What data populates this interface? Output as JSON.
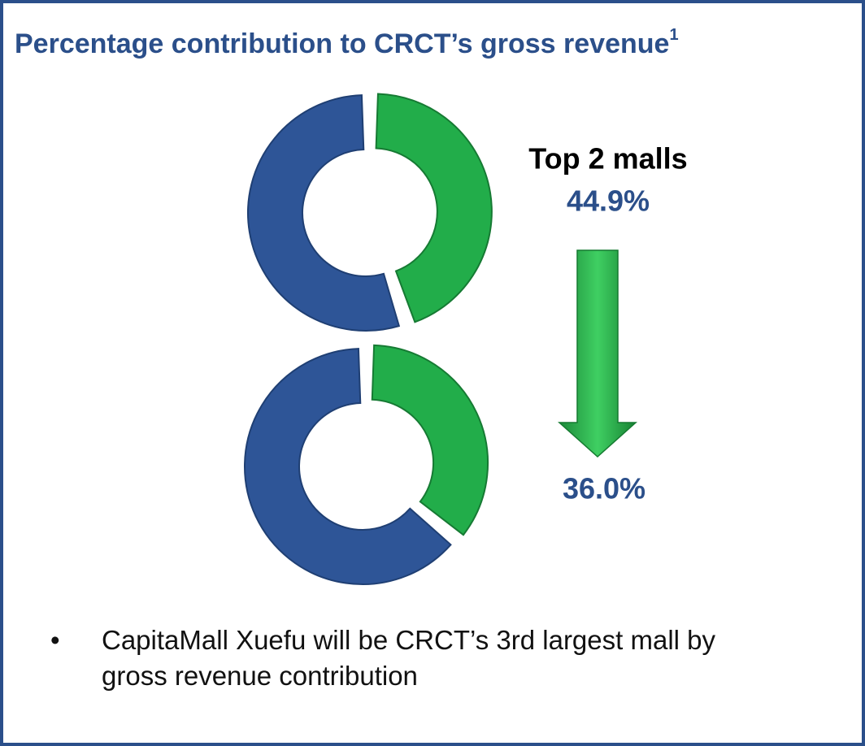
{
  "chart_data": [
    {
      "type": "donut",
      "title": "Percentage contribution to CRCT’s gross revenue",
      "title_note": "1",
      "annotation": "Top 2 malls",
      "values": [
        44.9
      ],
      "value_labels": [
        "44.9%"
      ],
      "color": "#22ad4a",
      "rest_color": "#2e5597"
    },
    {
      "type": "donut",
      "values": [
        36.0
      ],
      "value_labels": [
        "36.0%"
      ],
      "color": "#22ad4a",
      "rest_color": "#2e5597"
    }
  ],
  "bullets": [
    "CapitaMall Xuefu will be CRCT’s 3rd largest mall by gross revenue contribution"
  ]
}
